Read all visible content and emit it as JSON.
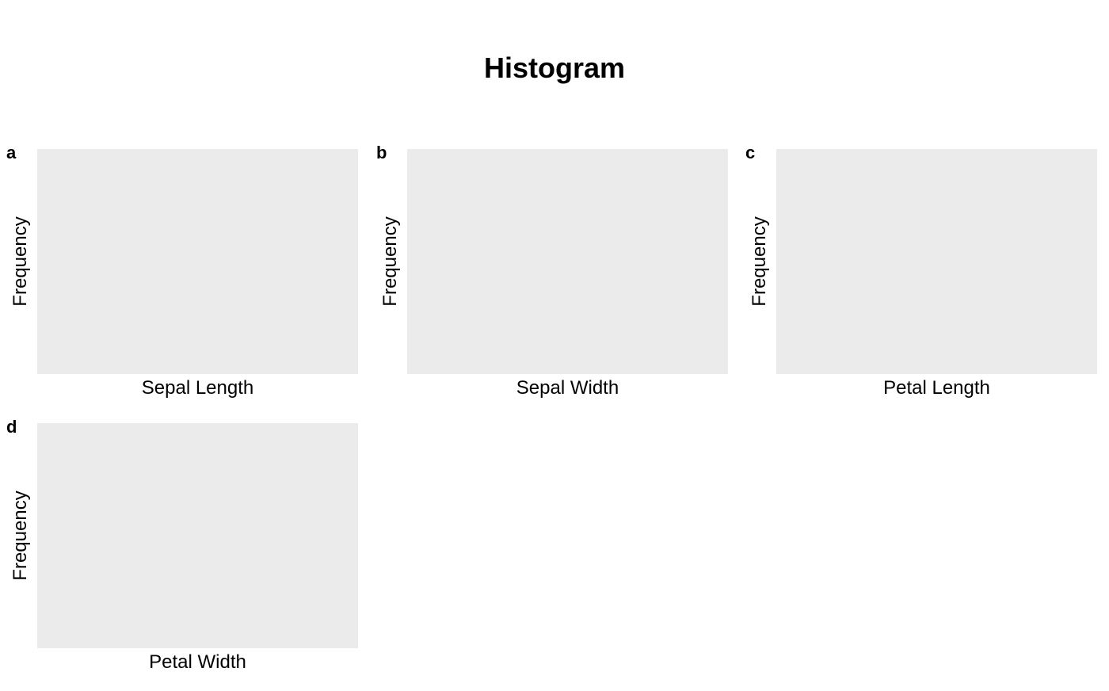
{
  "chart_data": {
    "type": "bar",
    "title": "Histogram",
    "panels": [
      {
        "tag": "a",
        "xlabel": "Sepal Length",
        "ylabel": "Frequency",
        "values": []
      },
      {
        "tag": "b",
        "xlabel": "Sepal Width",
        "ylabel": "Frequency",
        "values": []
      },
      {
        "tag": "c",
        "xlabel": "Petal Length",
        "ylabel": "Frequency",
        "values": []
      },
      {
        "tag": "d",
        "xlabel": "Petal Width",
        "ylabel": "Frequency",
        "values": []
      }
    ],
    "panel_background": "#ebebeb",
    "grid": false,
    "legend": "none"
  }
}
